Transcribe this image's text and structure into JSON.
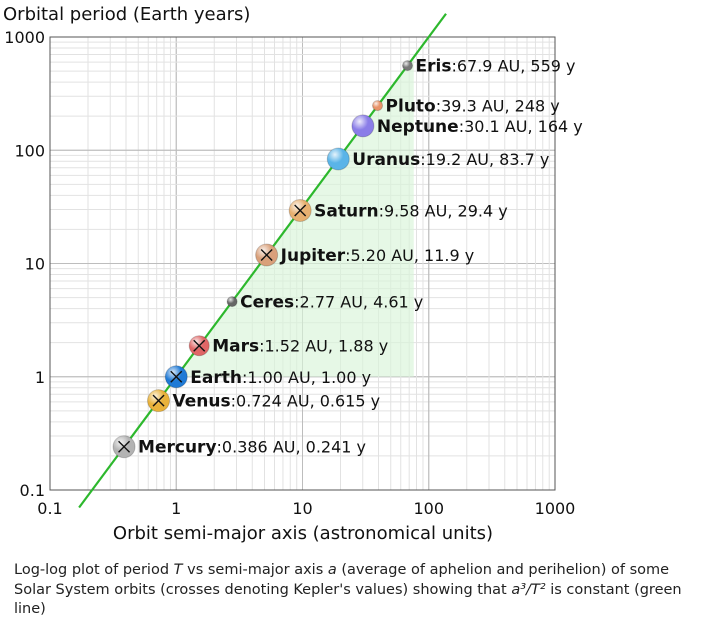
{
  "chart_data": {
    "type": "scatter",
    "xlabel": "Orbit semi-major axis (astronomical units)",
    "ylabel": "Orbital period (Earth years)",
    "x_scale": "log",
    "y_scale": "log",
    "xlim": [
      0.1,
      1000
    ],
    "ylim": [
      0.1,
      1000
    ],
    "x_ticks": [
      "0.1",
      "1",
      "10",
      "100",
      "1000"
    ],
    "y_ticks": [
      "0.1",
      "1",
      "10",
      "100",
      "1000"
    ],
    "grid": true,
    "trend_line": {
      "relation": "T = a^1.5",
      "color": "#2db82d"
    },
    "points": [
      {
        "name": "Mercury",
        "values": ":0.386 AU, 0.241 y",
        "a": 0.386,
        "t": 0.241,
        "color": "#b3b3b3",
        "cross": true,
        "size": 11
      },
      {
        "name": "Venus",
        "values": ":0.724 AU, 0.615 y",
        "a": 0.724,
        "t": 0.615,
        "color": "#e9b23a",
        "cross": true,
        "size": 11
      },
      {
        "name": "Earth",
        "values": ":1.00 AU, 1.00 y",
        "a": 1.0,
        "t": 1.0,
        "color": "#1f7ad6",
        "cross": true,
        "size": 11
      },
      {
        "name": "Mars",
        "values": ":1.52 AU, 1.88 y",
        "a": 1.52,
        "t": 1.88,
        "color": "#e06666",
        "cross": true,
        "size": 10
      },
      {
        "name": "Ceres",
        "values": ":2.77 AU, 4.61 y",
        "a": 2.77,
        "t": 4.61,
        "color": "#666666",
        "cross": false,
        "size": 5
      },
      {
        "name": "Jupiter",
        "values": ":5.20 AU, 11.9 y",
        "a": 5.2,
        "t": 11.9,
        "color": "#d9a07a",
        "cross": true,
        "size": 11
      },
      {
        "name": "Saturn",
        "values": ":9.58 AU, 29.4 y",
        "a": 9.58,
        "t": 29.4,
        "color": "#e8b070",
        "cross": true,
        "size": 11
      },
      {
        "name": "Uranus",
        "values": ":19.2 AU, 83.7 y",
        "a": 19.2,
        "t": 83.7,
        "color": "#5ab4e8",
        "cross": false,
        "size": 11
      },
      {
        "name": "Neptune",
        "values": ":30.1 AU, 164 y",
        "a": 30.1,
        "t": 164,
        "color": "#8a7de8",
        "cross": false,
        "size": 11
      },
      {
        "name": "Pluto",
        "values": ":39.3 AU, 248 y",
        "a": 39.3,
        "t": 248,
        "color": "#e8936a",
        "cross": false,
        "size": 5
      },
      {
        "name": "Eris",
        "values": ":67.9 AU, 559 y",
        "a": 67.9,
        "t": 559,
        "color": "#777777",
        "cross": false,
        "size": 5
      }
    ]
  },
  "caption": {
    "seg1": "Log-log plot of period ",
    "var_t": "T",
    "seg2": " vs semi-major axis ",
    "var_a": "a",
    "seg3": " (average of aphelion and perihelion) of some Solar System orbits (crosses denoting Kepler's values) showing that ",
    "formula": "a³/T²",
    "seg4": " is constant (green line)"
  }
}
